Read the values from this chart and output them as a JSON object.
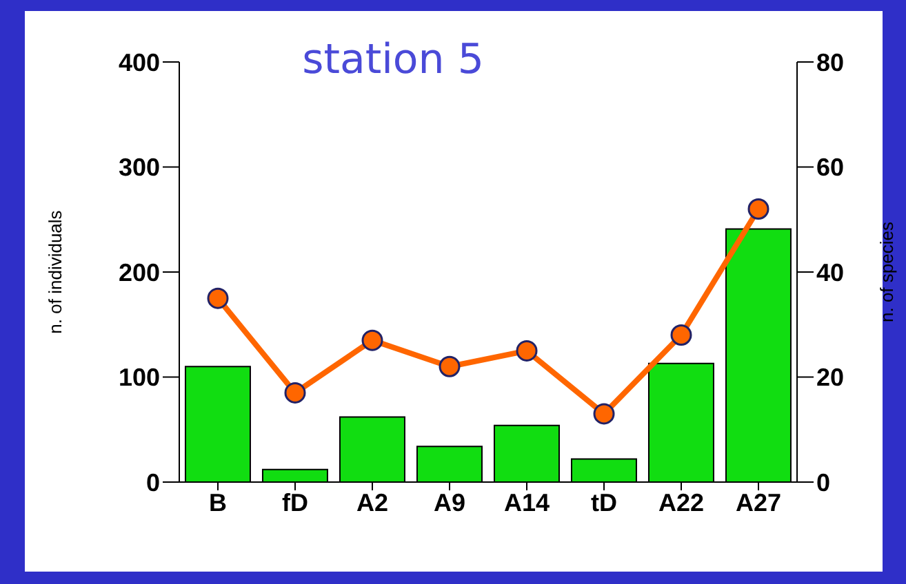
{
  "chart_data": {
    "type": "bar",
    "title": "station 5",
    "ylabel": "n. of individuals",
    "y2label": "n. of species",
    "categories": [
      "B",
      "fD",
      "A2",
      "A9",
      "A14",
      "tD",
      "A22",
      "A27"
    ],
    "series": [
      {
        "color": "#11dd11",
        "values": [
          110,
          12,
          62,
          34,
          54,
          22,
          113,
          241
        ]
      },
      {
        "type": "line",
        "axis": "y2",
        "color": "#ff6600",
        "values": [
          35,
          17,
          27,
          22,
          25,
          13,
          28,
          52
        ]
      }
    ],
    "ylim": [
      0,
      400
    ],
    "yticks": [
      0,
      100,
      200,
      300,
      400
    ],
    "y2lim": [
      0,
      80
    ],
    "y2ticks": [
      0,
      20,
      40,
      60,
      80
    ],
    "grid": false,
    "legend": false,
    "marker": "circle",
    "line_style": "solid"
  }
}
